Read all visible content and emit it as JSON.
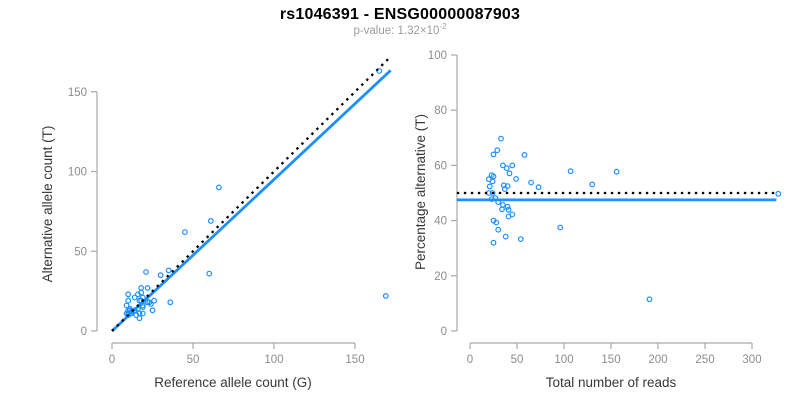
{
  "header": {
    "title": "rs1046391 - ENSG00000087903",
    "subtitle_prefix": "p-value: 1.32×10",
    "subtitle_exponent": "-2"
  },
  "colors": {
    "title": "#000000",
    "subtitle": "#9b9b9b",
    "points": "#1e8fff",
    "solid_line": "#1e8fff",
    "dotted_line": "#000000",
    "axis_line": "#a9a9a9",
    "tick_label": "#8c8c8c",
    "axis_title": "#383838",
    "background": "#ffffff"
  },
  "chart_data": [
    {
      "type": "scatter",
      "name": "counts-scatter",
      "xlabel": "Reference allele count (G)",
      "ylabel": "Alternative allele count (T)",
      "xlim": [
        0,
        172
      ],
      "ylim": [
        0,
        172
      ],
      "x_ticks": [
        0,
        50,
        100,
        150
      ],
      "y_ticks": [
        0,
        50,
        100,
        150
      ],
      "grid": false,
      "legend": "none",
      "points": [
        [
          165,
          163
        ],
        [
          169,
          22
        ],
        [
          66,
          90
        ],
        [
          61,
          69
        ],
        [
          45,
          62
        ],
        [
          60,
          36
        ],
        [
          36,
          18
        ],
        [
          35,
          38
        ],
        [
          30,
          35
        ],
        [
          21,
          37
        ],
        [
          10,
          23
        ],
        [
          10,
          19
        ],
        [
          9,
          16
        ],
        [
          14,
          21
        ],
        [
          16,
          23
        ],
        [
          18,
          27
        ],
        [
          11,
          14
        ],
        [
          10,
          13
        ],
        [
          9,
          11
        ],
        [
          11,
          13
        ],
        [
          10,
          11
        ],
        [
          12,
          12
        ],
        [
          17,
          19
        ],
        [
          19,
          21
        ],
        [
          18,
          19
        ],
        [
          10,
          10
        ],
        [
          12,
          11
        ],
        [
          14,
          13
        ],
        [
          16,
          14
        ],
        [
          19,
          16
        ],
        [
          22,
          18
        ],
        [
          19,
          15
        ],
        [
          23,
          18
        ],
        [
          26,
          19
        ],
        [
          24,
          17
        ],
        [
          15,
          10
        ],
        [
          17,
          11
        ],
        [
          25,
          13
        ],
        [
          22,
          27
        ],
        [
          18,
          24
        ],
        [
          17,
          8
        ],
        [
          19,
          11
        ]
      ],
      "lines": [
        {
          "name": "regression-line",
          "style": "solid",
          "slope": 0.95,
          "intercept": 0
        },
        {
          "name": "identity-line",
          "style": "dotted",
          "slope": 1,
          "intercept": 0
        }
      ]
    },
    {
      "type": "scatter",
      "name": "percentage-scatter",
      "xlabel": "Total number of reads",
      "ylabel": "Percentage alternative (T)",
      "xlim": [
        0,
        326
      ],
      "ylim": [
        0,
        100
      ],
      "x_ticks": [
        0,
        50,
        100,
        150,
        200,
        250,
        300
      ],
      "y_ticks": [
        0,
        20,
        40,
        60,
        80,
        100
      ],
      "grid": false,
      "legend": "none",
      "points": [
        [
          328,
          49.7
        ],
        [
          191,
          11.5
        ],
        [
          156,
          57.7
        ],
        [
          130,
          53.1
        ],
        [
          107,
          57.9
        ],
        [
          96,
          37.5
        ],
        [
          54,
          33.3
        ],
        [
          73,
          52.1
        ],
        [
          65,
          53.8
        ],
        [
          58,
          63.8
        ],
        [
          33,
          69.7
        ],
        [
          29,
          65.5
        ],
        [
          25,
          64.0
        ],
        [
          35,
          60.0
        ],
        [
          39,
          59.0
        ],
        [
          45,
          60.0
        ],
        [
          25,
          56.0
        ],
        [
          23,
          56.5
        ],
        [
          20,
          55.0
        ],
        [
          24,
          54.2
        ],
        [
          21,
          52.4
        ],
        [
          24,
          50.0
        ],
        [
          36,
          52.8
        ],
        [
          40,
          52.5
        ],
        [
          37,
          51.4
        ],
        [
          20,
          50.0
        ],
        [
          23,
          47.8
        ],
        [
          27,
          48.1
        ],
        [
          30,
          46.7
        ],
        [
          35,
          45.7
        ],
        [
          40,
          45.0
        ],
        [
          34,
          44.1
        ],
        [
          41,
          43.9
        ],
        [
          45,
          42.2
        ],
        [
          41,
          41.5
        ],
        [
          25,
          40.0
        ],
        [
          28,
          39.3
        ],
        [
          38,
          34.2
        ],
        [
          49,
          55.1
        ],
        [
          42,
          57.1
        ],
        [
          25,
          32.0
        ],
        [
          30,
          36.7
        ]
      ],
      "lines": [
        {
          "name": "fitted-percentage-line",
          "style": "solid",
          "y": 47.5
        },
        {
          "name": "expected-50-line",
          "style": "dotted",
          "y": 50
        }
      ]
    }
  ]
}
